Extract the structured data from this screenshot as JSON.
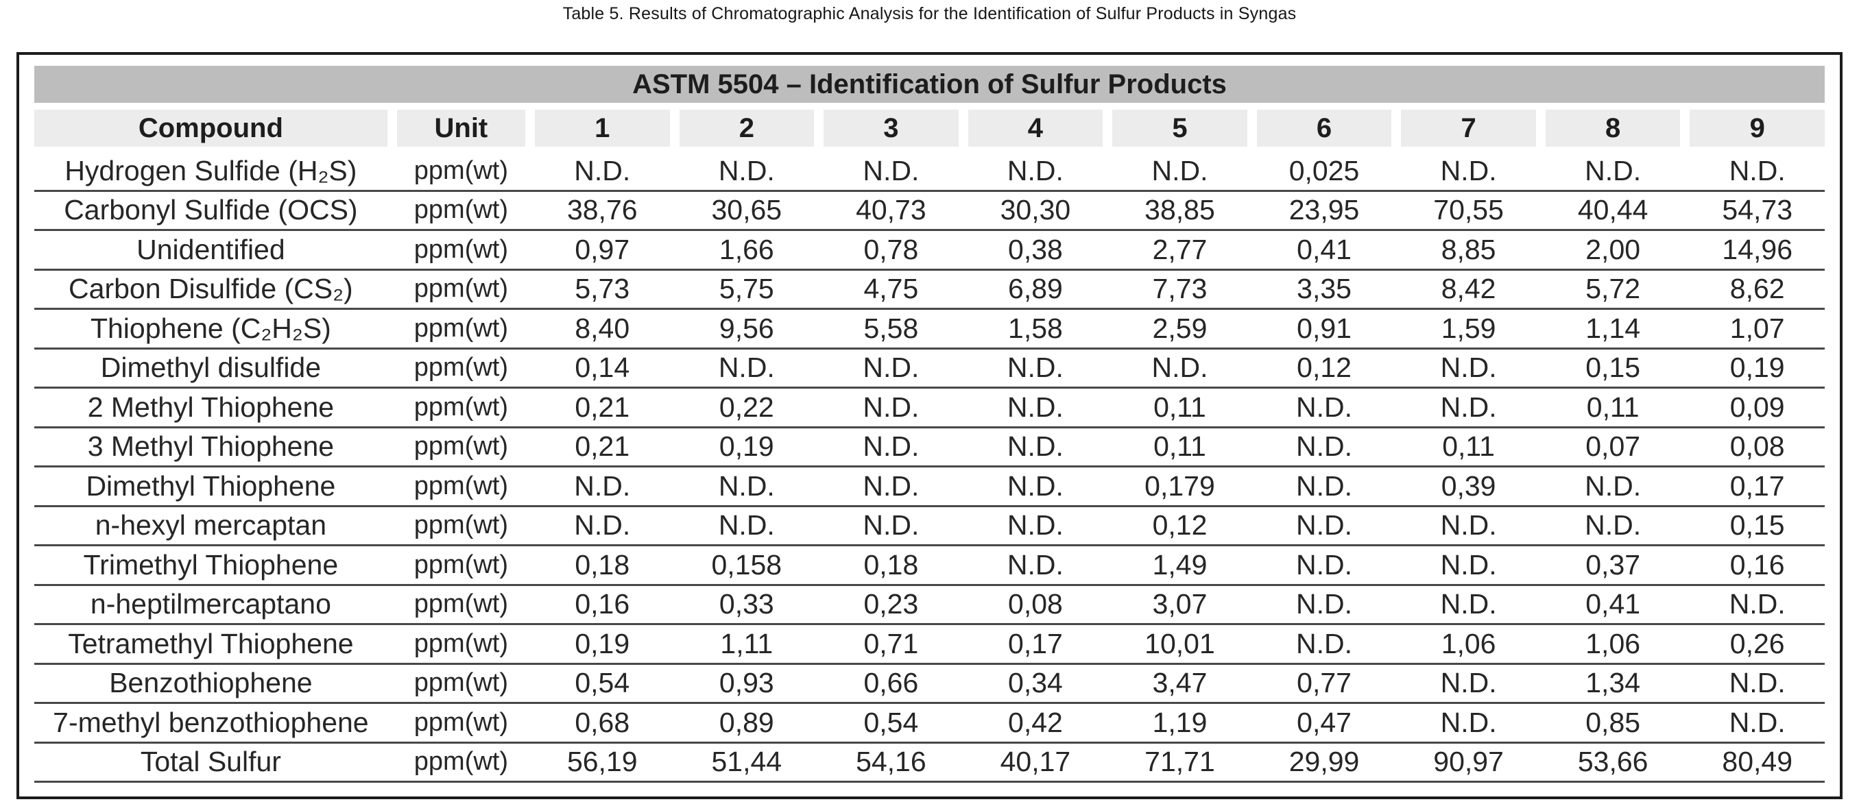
{
  "caption": "Table 5. Results of Chromatographic Analysis for the Identification of Sulfur Products in Syngas",
  "table": {
    "banner": "ASTM 5504 – Identification of Sulfur Products",
    "columns": [
      "Compound",
      "Unit",
      "1",
      "2",
      "3",
      "4",
      "5",
      "6",
      "7",
      "8",
      "9"
    ],
    "rows": [
      {
        "compound": "Hydrogen Sulfide (H₂S)",
        "unit": "ppm(wt)",
        "values": [
          "N.D.",
          "N.D.",
          "N.D.",
          "N.D.",
          "N.D.",
          "0,025",
          "N.D.",
          "N.D.",
          "N.D."
        ]
      },
      {
        "compound": "Carbonyl Sulfide (OCS)",
        "unit": "ppm(wt)",
        "values": [
          "38,76",
          "30,65",
          "40,73",
          "30,30",
          "38,85",
          "23,95",
          "70,55",
          "40,44",
          "54,73"
        ]
      },
      {
        "compound": "Unidentified",
        "unit": "ppm(wt)",
        "values": [
          "0,97",
          "1,66",
          "0,78",
          "0,38",
          "2,77",
          "0,41",
          "8,85",
          "2,00",
          "14,96"
        ]
      },
      {
        "compound": "Carbon Disulfide (CS₂)",
        "unit": "ppm(wt)",
        "values": [
          "5,73",
          "5,75",
          "4,75",
          "6,89",
          "7,73",
          "3,35",
          "8,42",
          "5,72",
          "8,62"
        ]
      },
      {
        "compound": "Thiophene (C₂H₂S)",
        "unit": "ppm(wt)",
        "values": [
          "8,40",
          "9,56",
          "5,58",
          "1,58",
          "2,59",
          "0,91",
          "1,59",
          "1,14",
          "1,07"
        ]
      },
      {
        "compound": "Dimethyl disulfide",
        "unit": "ppm(wt)",
        "values": [
          "0,14",
          "N.D.",
          "N.D.",
          "N.D.",
          "N.D.",
          "0,12",
          "N.D.",
          "0,15",
          "0,19"
        ]
      },
      {
        "compound": "2 Methyl Thiophene",
        "unit": "ppm(wt)",
        "values": [
          "0,21",
          "0,22",
          "N.D.",
          "N.D.",
          "0,11",
          "N.D.",
          "N.D.",
          "0,11",
          "0,09"
        ]
      },
      {
        "compound": "3 Methyl Thiophene",
        "unit": "ppm(wt)",
        "values": [
          "0,21",
          "0,19",
          "N.D.",
          "N.D.",
          "0,11",
          "N.D.",
          "0,11",
          "0,07",
          "0,08"
        ]
      },
      {
        "compound": "Dimethyl Thiophene",
        "unit": "ppm(wt)",
        "values": [
          "N.D.",
          "N.D.",
          "N.D.",
          "N.D.",
          "0,179",
          "N.D.",
          "0,39",
          "N.D.",
          "0,17"
        ]
      },
      {
        "compound": "n-hexyl mercaptan",
        "unit": "ppm(wt)",
        "values": [
          "N.D.",
          "N.D.",
          "N.D.",
          "N.D.",
          "0,12",
          "N.D.",
          "N.D.",
          "N.D.",
          "0,15"
        ]
      },
      {
        "compound": "Trimethyl Thiophene",
        "unit": "ppm(wt)",
        "values": [
          "0,18",
          "0,158",
          "0,18",
          "N.D.",
          "1,49",
          "N.D.",
          "N.D.",
          "0,37",
          "0,16"
        ]
      },
      {
        "compound": "n-heptilmercaptano",
        "unit": "ppm(wt)",
        "values": [
          "0,16",
          "0,33",
          "0,23",
          "0,08",
          "3,07",
          "N.D.",
          "N.D.",
          "0,41",
          "N.D."
        ]
      },
      {
        "compound": "Tetramethyl Thiophene",
        "unit": "ppm(wt)",
        "values": [
          "0,19",
          "1,11",
          "0,71",
          "0,17",
          "10,01",
          "N.D.",
          "1,06",
          "1,06",
          "0,26"
        ]
      },
      {
        "compound": "Benzothiophene",
        "unit": "ppm(wt)",
        "values": [
          "0,54",
          "0,93",
          "0,66",
          "0,34",
          "3,47",
          "0,77",
          "N.D.",
          "1,34",
          "N.D."
        ]
      },
      {
        "compound": "7-methyl benzothiophene",
        "unit": "ppm(wt)",
        "values": [
          "0,68",
          "0,89",
          "0,54",
          "0,42",
          "1,19",
          "0,47",
          "N.D.",
          "0,85",
          "N.D."
        ]
      },
      {
        "compound": "Total Sulfur",
        "unit": "ppm(wt)",
        "values": [
          "56,19",
          "51,44",
          "54,16",
          "40,17",
          "71,71",
          "29,99",
          "90,97",
          "53,66",
          "80,49"
        ]
      }
    ]
  }
}
